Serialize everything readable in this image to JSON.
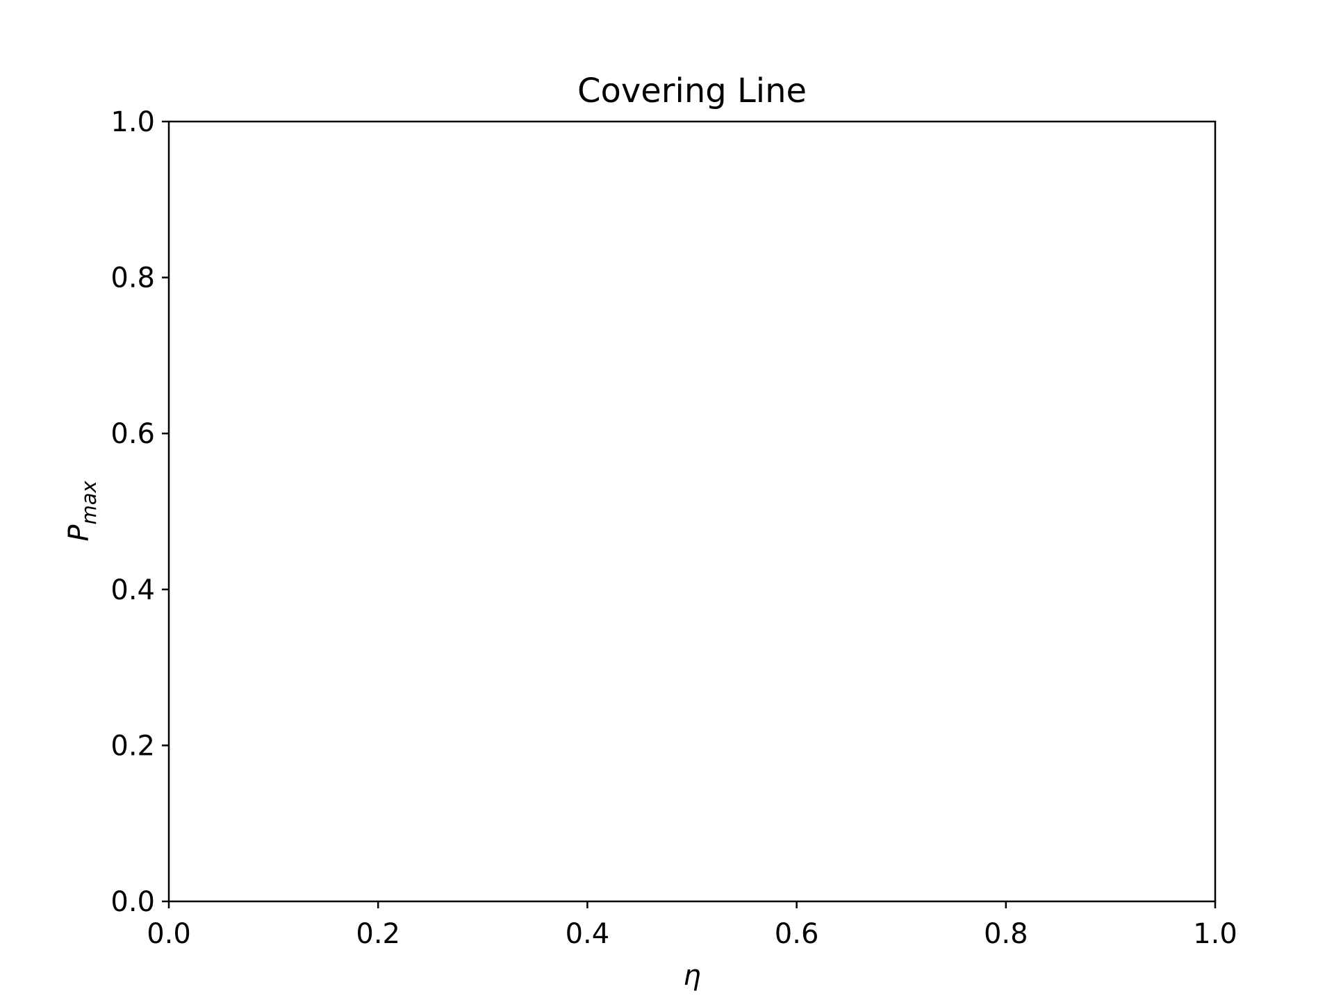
{
  "chart_data": {
    "type": "line",
    "title": "Covering Line",
    "xlabel": "η",
    "ylabel": {
      "base": "P",
      "subscript": "max"
    },
    "xlim": [
      0.0,
      1.0
    ],
    "ylim": [
      0.0,
      1.0
    ],
    "xticks": [
      0.0,
      0.2,
      0.4,
      0.6,
      0.8,
      1.0
    ],
    "yticks": [
      0.0,
      0.2,
      0.4,
      0.6,
      0.8,
      1.0
    ],
    "xtick_labels": [
      "0.0",
      "0.2",
      "0.4",
      "0.6",
      "0.8",
      "1.0"
    ],
    "ytick_labels": [
      "0.0",
      "0.2",
      "0.4",
      "0.6",
      "0.8",
      "1.0"
    ],
    "grid": false,
    "series": []
  },
  "colors": {
    "axes": "#000000",
    "background": "#ffffff"
  }
}
